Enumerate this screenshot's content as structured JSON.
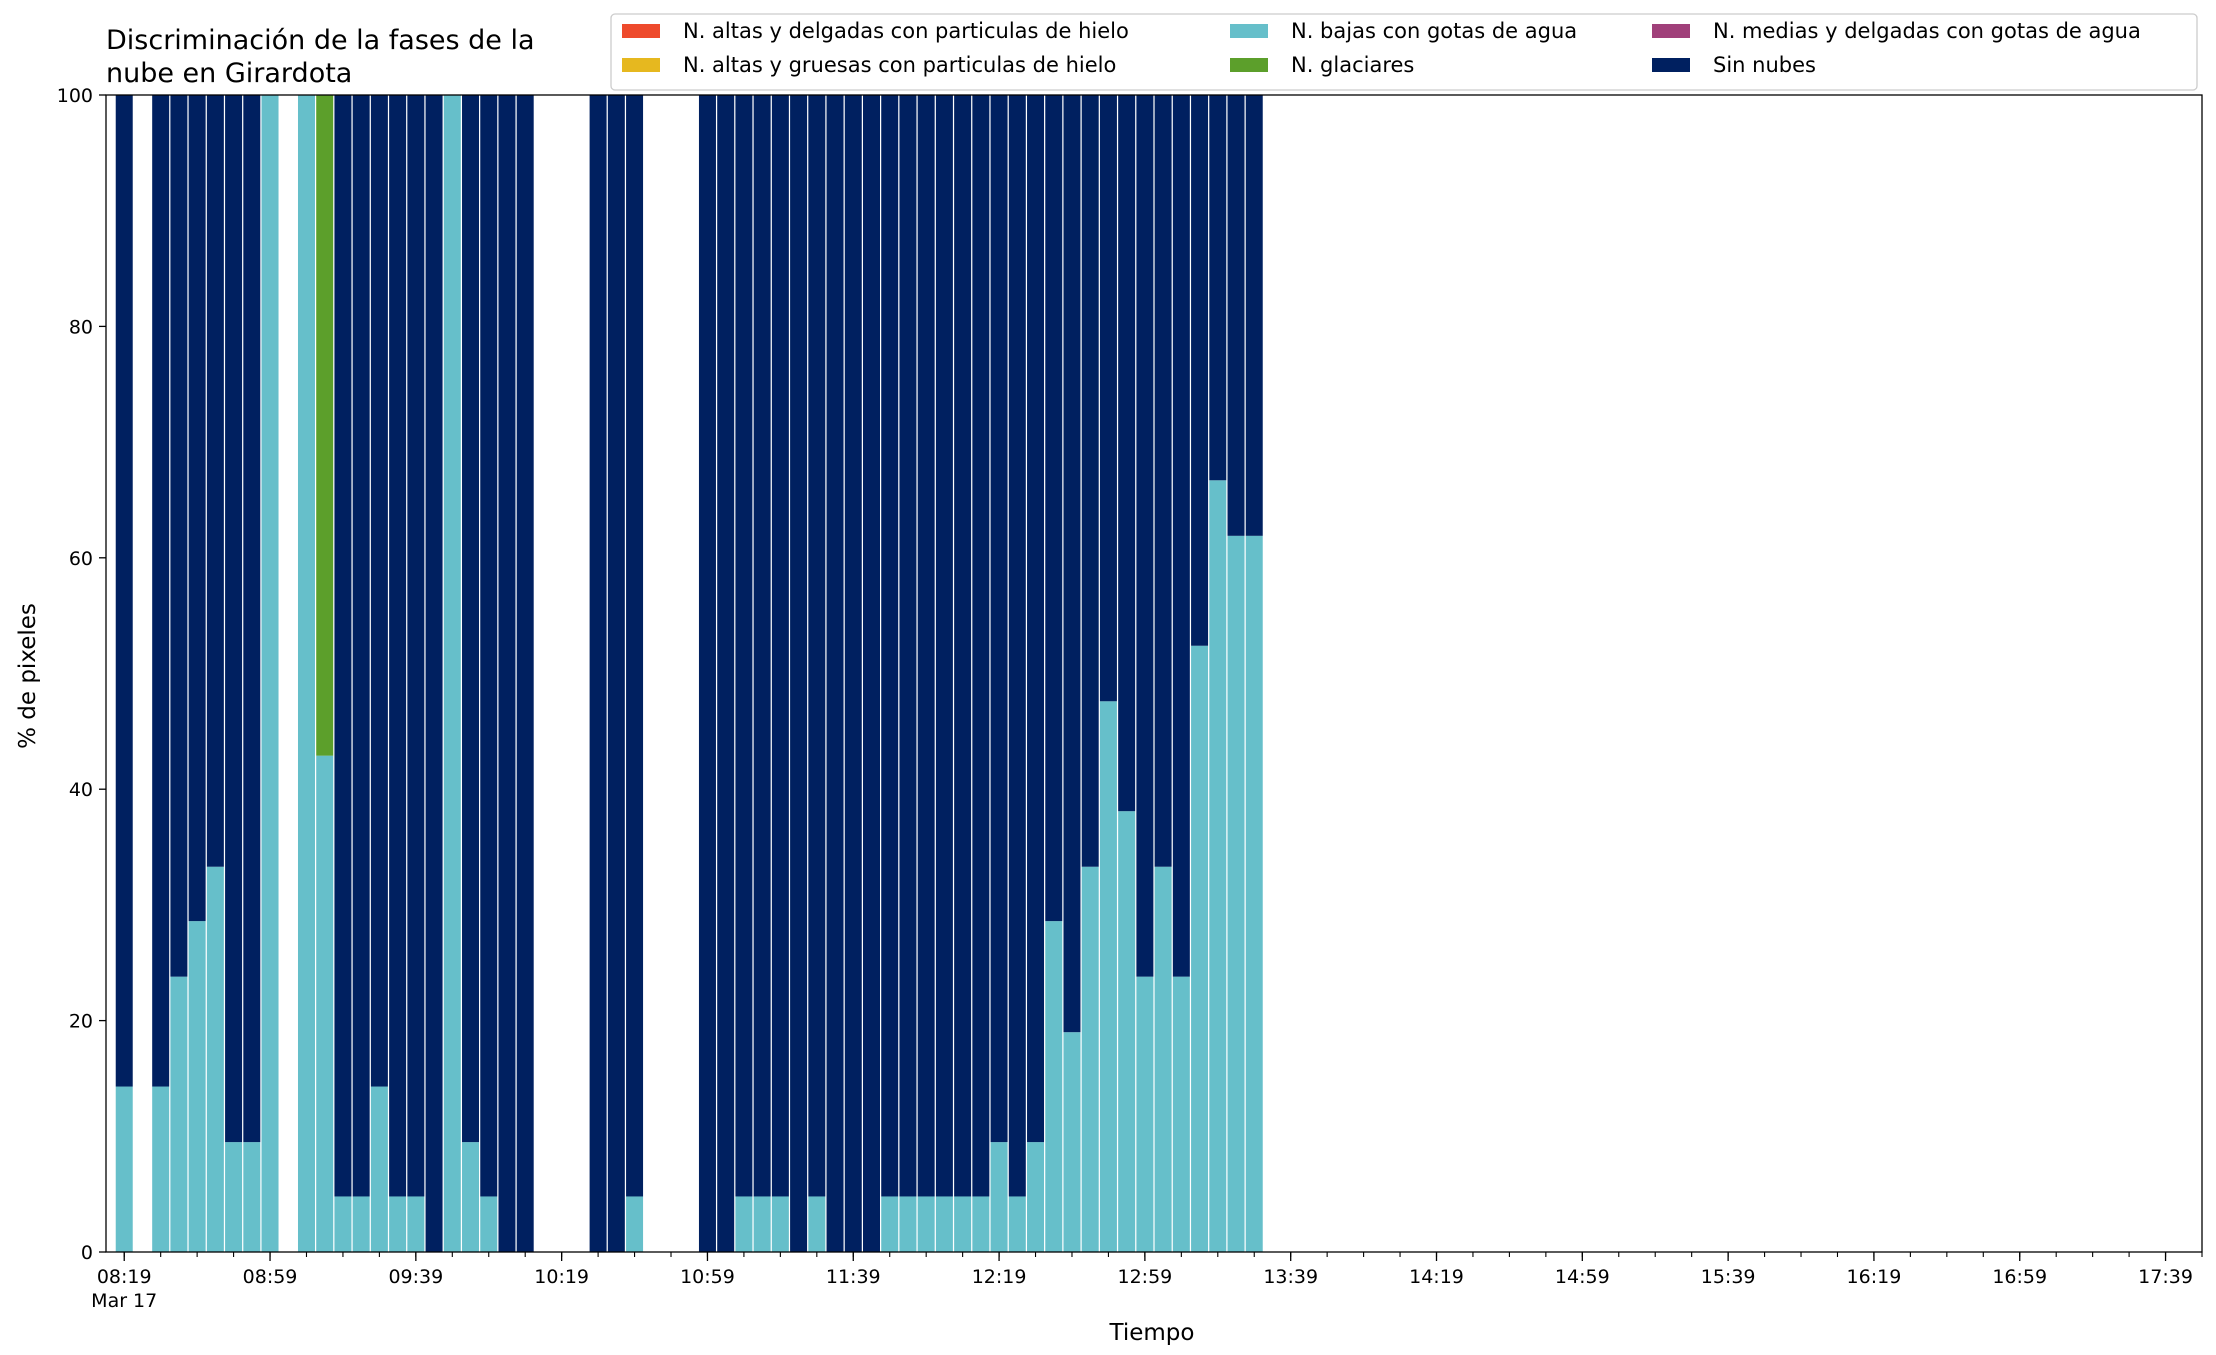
{
  "chart_data": {
    "type": "bar",
    "stacked": true,
    "title_lines": [
      "Discriminación de la fases de la",
      "nube en Girardota"
    ],
    "xlabel": "Tiempo",
    "ylabel": "% de pixeles",
    "ylim": [
      0,
      100
    ],
    "yticks": [
      "0",
      "20",
      "40",
      "60",
      "80",
      "100"
    ],
    "x_date_label": "Mar 17",
    "x_range_minutes": [
      "08:14",
      "17:49"
    ],
    "x_major_ticks": [
      "08:19",
      "08:59",
      "09:39",
      "10:19",
      "10:59",
      "11:39",
      "12:19",
      "12:59",
      "13:39",
      "14:19",
      "14:59",
      "15:39",
      "16:19",
      "16:59",
      "17:39"
    ],
    "x_minor_ticks": [
      "08:19",
      "08:29",
      "08:39",
      "08:49",
      "08:59",
      "09:09",
      "09:19",
      "09:29",
      "09:39",
      "09:49",
      "09:59",
      "10:09",
      "10:19",
      "10:29",
      "10:39",
      "10:49",
      "10:59",
      "11:09",
      "11:19",
      "11:29",
      "11:39",
      "11:49",
      "11:59",
      "12:09",
      "12:19",
      "12:29",
      "12:39",
      "12:49",
      "12:59",
      "13:09",
      "13:19",
      "13:29",
      "13:39",
      "13:49",
      "13:59",
      "14:09",
      "14:19",
      "14:29",
      "14:39",
      "14:49",
      "14:59",
      "15:09",
      "15:19",
      "15:29",
      "15:39",
      "15:49",
      "15:59",
      "16:09",
      "16:19",
      "16:29",
      "16:39",
      "16:49",
      "16:59",
      "17:09",
      "17:19",
      "17:29",
      "17:39",
      "17:49"
    ],
    "grid": false,
    "legend_position": "top-right",
    "legend": [
      {
        "name": "N. altas y delgadas con particulas de hielo",
        "color": "#ee4a2c"
      },
      {
        "name": "N. altas y gruesas con particulas de hielo",
        "color": "#e6b81f"
      },
      {
        "name": "N. bajas con gotas de agua",
        "color": "#66bfca"
      },
      {
        "name": "N. glaciares",
        "color": "#5c9f2b"
      },
      {
        "name": "N. medias y delgadas con gotas de agua",
        "color": "#a0407a"
      },
      {
        "name": "Sin nubes",
        "color": "#002060"
      }
    ],
    "x": [
      "08:19",
      "08:29",
      "08:34",
      "08:39",
      "08:44",
      "08:49",
      "08:54",
      "08:59",
      "09:09",
      "09:14",
      "09:19",
      "09:24",
      "09:29",
      "09:34",
      "09:39",
      "09:44",
      "09:49",
      "09:54",
      "09:59",
      "10:04",
      "10:09",
      "10:29",
      "10:34",
      "10:39",
      "10:59",
      "11:04",
      "11:09",
      "11:14",
      "11:19",
      "11:24",
      "11:29",
      "11:34",
      "11:39",
      "11:44",
      "11:49",
      "11:54",
      "11:59",
      "12:04",
      "12:09",
      "12:14",
      "12:19",
      "12:24",
      "12:29",
      "12:34",
      "12:39",
      "12:44",
      "12:49",
      "12:54",
      "12:59",
      "13:04",
      "13:09",
      "13:14",
      "13:19",
      "13:24",
      "13:29",
      "13:34",
      "13:39",
      "13:44"
    ],
    "series": [
      {
        "name": "N. altas y delgadas con particulas de hielo",
        "color": "#ee4a2c",
        "values": [
          0,
          0,
          0,
          0,
          0,
          0,
          0,
          0,
          0,
          0,
          0,
          0,
          0,
          0,
          0,
          0,
          0,
          0,
          0,
          0,
          0,
          0,
          0,
          0,
          0,
          0,
          0,
          0,
          0,
          0,
          0,
          0,
          0,
          0,
          0,
          0,
          0,
          0,
          0,
          0,
          0,
          0,
          0,
          0,
          0,
          0,
          0,
          0,
          0,
          0,
          0,
          0,
          0,
          0,
          0,
          0,
          0,
          0
        ]
      },
      {
        "name": "N. altas y gruesas con particulas de hielo",
        "color": "#e6b81f",
        "values": [
          0,
          0,
          0,
          0,
          0,
          0,
          0,
          0,
          0,
          0,
          0,
          0,
          0,
          0,
          0,
          0,
          0,
          0,
          0,
          0,
          0,
          0,
          0,
          0,
          0,
          0,
          0,
          0,
          0,
          0,
          0,
          0,
          0,
          0,
          0,
          0,
          0,
          0,
          0,
          0,
          0,
          0,
          0,
          0,
          0,
          0,
          0,
          0,
          0,
          0,
          0,
          0,
          0,
          0,
          0,
          0,
          0,
          0
        ]
      },
      {
        "name": "N. bajas con gotas de agua",
        "color": "#66bfca",
        "values": [
          14.3,
          14.3,
          23.8,
          28.6,
          33.3,
          9.5,
          9.5,
          100,
          100,
          42.9,
          4.8,
          4.8,
          14.3,
          4.8,
          4.8,
          0,
          100,
          9.5,
          4.8,
          0,
          0,
          0,
          0,
          4.8,
          0,
          0,
          4.8,
          4.8,
          4.8,
          0,
          4.8,
          0,
          0,
          0,
          4.8,
          4.8,
          4.8,
          4.8,
          4.8,
          4.8,
          9.5,
          4.8,
          9.5,
          28.6,
          19.0,
          33.3,
          47.6,
          38.1,
          23.8,
          33.3,
          23.8,
          52.4,
          66.7,
          61.9,
          61.9,
          0,
          0,
          0
        ]
      },
      {
        "name": "N. glaciares",
        "color": "#5c9f2b",
        "values": [
          0,
          0,
          0,
          0,
          0,
          0,
          0,
          0,
          0,
          57.1,
          0,
          0,
          0,
          0,
          0,
          0,
          0,
          0,
          0,
          0,
          0,
          0,
          0,
          0,
          0,
          0,
          0,
          0,
          0,
          0,
          0,
          0,
          0,
          0,
          0,
          0,
          0,
          0,
          0,
          0,
          0,
          0,
          0,
          0,
          0,
          0,
          0,
          0,
          0,
          0,
          0,
          0,
          0,
          0,
          0,
          0,
          0,
          0
        ]
      },
      {
        "name": "N. medias y delgadas con gotas de agua",
        "color": "#a0407a",
        "values": [
          0,
          0,
          0,
          0,
          0,
          0,
          0,
          0,
          0,
          0,
          0,
          0,
          0,
          0,
          0,
          0,
          0,
          0,
          0,
          0,
          0,
          0,
          0,
          0,
          0,
          0,
          0,
          0,
          0,
          0,
          0,
          0,
          0,
          0,
          0,
          0,
          0,
          0,
          0,
          0,
          0,
          0,
          0,
          0,
          0,
          0,
          0,
          0,
          0,
          0,
          0,
          0,
          0,
          0,
          0,
          0,
          0,
          0
        ]
      },
      {
        "name": "Sin nubes",
        "color": "#002060",
        "values": [
          85.7,
          85.7,
          76.2,
          71.4,
          66.7,
          90.5,
          90.5,
          0,
          0,
          0,
          95.2,
          95.2,
          85.7,
          95.2,
          95.2,
          100,
          0,
          90.5,
          95.2,
          100,
          100,
          100,
          100,
          95.2,
          100,
          100,
          95.2,
          95.2,
          95.2,
          100,
          95.2,
          100,
          100,
          100,
          95.2,
          95.2,
          95.2,
          95.2,
          95.2,
          95.2,
          90.5,
          95.2,
          90.5,
          71.4,
          81.0,
          66.7,
          52.4,
          61.9,
          76.2,
          66.7,
          76.2,
          47.6,
          33.3,
          38.1,
          38.1,
          0,
          0,
          0
        ]
      }
    ]
  }
}
